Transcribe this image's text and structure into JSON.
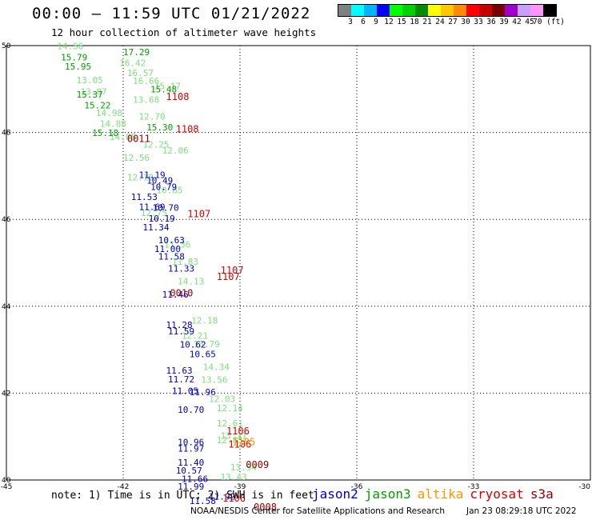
{
  "title": "00:00 – 11:59 UTC 01/21/2022",
  "subtitle": "12 hour collection of altimeter wave heights",
  "legend": {
    "colors": [
      "#808080",
      "#00ffff",
      "#00b4ff",
      "#0000ff",
      "#00ff00",
      "#00d200",
      "#008c00",
      "#ffff00",
      "#ffc800",
      "#ff8c00",
      "#ff0000",
      "#c80000",
      "#780000",
      "#a000c8",
      "#c8a0ff",
      "#ff96ff",
      "#000000"
    ],
    "labels": [
      "3",
      "6",
      "9",
      "12",
      "15",
      "18",
      "21",
      "24",
      "27",
      "30",
      "33",
      "36",
      "39",
      "42",
      "45",
      "70 (ft)"
    ]
  },
  "note": "note: 1) Time is in UTC; 2) SWH is in feet",
  "satellites": [
    {
      "name": "jason2",
      "color": "#0000c8"
    },
    {
      "name": "jason3",
      "color": "#00a000"
    },
    {
      "name": "altika",
      "color": "#ff9600"
    },
    {
      "name": "cryosat",
      "color": "#dc0000"
    },
    {
      "name": "s3a",
      "color": "#960000"
    }
  ],
  "credit": "NOAA/NESDIS Center for Satellite Applications and Research",
  "timestamp": "Jan 23 08:29:18 UTC 2022",
  "chart_data": {
    "type": "scatter",
    "xlim": [
      -45,
      -30
    ],
    "ylim": [
      40,
      50
    ],
    "x_ticks": [
      "-45",
      "-42",
      "-39",
      "-36",
      "-33",
      "-30"
    ],
    "y_ticks": [
      "40",
      "42",
      "44",
      "46",
      "48",
      "50"
    ],
    "grid": true,
    "series": [
      {
        "name": "jason3",
        "color": "#7ee07e",
        "points": [
          [
            -43.7,
            49.92,
            "14.56"
          ],
          [
            -43.2,
            49.13,
            "13.05"
          ],
          [
            -43.1,
            48.87,
            "13.87"
          ],
          [
            -42.7,
            48.38,
            "14.98"
          ],
          [
            -42.6,
            48.13,
            "14.88"
          ],
          [
            -42.35,
            47.83,
            "14.05"
          ],
          [
            -42.0,
            47.35,
            "12.56"
          ],
          [
            -41.9,
            46.9,
            "12.10"
          ],
          [
            -41.55,
            46.08,
            "12.75"
          ],
          [
            -40.95,
            45.35,
            "11.36"
          ],
          [
            -40.75,
            44.95,
            "11.83"
          ],
          [
            -40.6,
            44.5,
            "14.13"
          ],
          [
            -40.25,
            43.6,
            "12.18"
          ],
          [
            -40.5,
            43.25,
            "12.21"
          ],
          [
            -40.2,
            43.06,
            "13.79"
          ],
          [
            -39.95,
            42.53,
            "14.34"
          ],
          [
            -40.0,
            42.24,
            "13.56"
          ],
          [
            -39.8,
            41.8,
            "12.03"
          ],
          [
            -39.6,
            41.58,
            "12.14"
          ],
          [
            -39.6,
            41.23,
            "12.61"
          ],
          [
            -39.5,
            40.95,
            "13.31"
          ],
          [
            -39.25,
            40.22,
            "13.54"
          ],
          [
            -42.1,
            49.53,
            "16.42"
          ],
          [
            -41.9,
            49.3,
            "16.57"
          ],
          [
            -41.75,
            49.12,
            "16.66"
          ],
          [
            -41.2,
            49.0,
            "15.17"
          ],
          [
            -41.75,
            48.68,
            "13.68"
          ],
          [
            -41.6,
            48.3,
            "12.70"
          ],
          [
            -41.5,
            47.65,
            "12.25"
          ],
          [
            -41.0,
            47.51,
            "12.06"
          ],
          [
            -41.15,
            46.6,
            "10.85"
          ],
          [
            -39.6,
            40.85,
            "12.85"
          ],
          [
            -39.5,
            40.0,
            "13.43"
          ]
        ]
      },
      {
        "name": "jason3-dark",
        "color": "#00a000",
        "points": [
          [
            -43.6,
            49.66,
            "15.79"
          ],
          [
            -43.5,
            49.45,
            "15.95"
          ],
          [
            -43.2,
            48.8,
            "15.37"
          ],
          [
            -43.0,
            48.55,
            "15.22"
          ],
          [
            -42.8,
            47.92,
            "15.18"
          ],
          [
            -42.0,
            49.78,
            "17.29"
          ],
          [
            -41.3,
            48.92,
            "15.48"
          ],
          [
            -41.4,
            48.05,
            "15.30"
          ]
        ]
      },
      {
        "name": "jason2",
        "color": "#0000c8",
        "points": [
          [
            -41.6,
            46.95,
            "11.19"
          ],
          [
            -41.4,
            46.82,
            "10.49"
          ],
          [
            -41.3,
            46.68,
            "10.79"
          ],
          [
            -41.8,
            46.45,
            "11.53"
          ],
          [
            -41.6,
            46.22,
            "11.69"
          ],
          [
            -41.25,
            46.2,
            "10.70"
          ],
          [
            -41.35,
            45.95,
            "10.19"
          ],
          [
            -41.5,
            45.75,
            "11.34"
          ],
          [
            -41.1,
            45.45,
            "10.63"
          ],
          [
            -41.2,
            45.25,
            "11.00"
          ],
          [
            -41.1,
            45.07,
            "11.58"
          ],
          [
            -40.85,
            44.8,
            "11.33"
          ],
          [
            -41.0,
            44.2,
            "11.46"
          ],
          [
            -40.9,
            43.5,
            "11.28"
          ],
          [
            -40.85,
            43.35,
            "11.59"
          ],
          [
            -40.55,
            43.05,
            "10.62"
          ],
          [
            -40.3,
            42.83,
            "10.65"
          ],
          [
            -40.9,
            42.45,
            "11.63"
          ],
          [
            -40.85,
            42.25,
            "11.72"
          ],
          [
            -40.75,
            41.98,
            "11.05"
          ],
          [
            -40.3,
            41.95,
            "11.96"
          ],
          [
            -40.6,
            41.55,
            "10.70"
          ],
          [
            -40.6,
            40.8,
            "10.96"
          ],
          [
            -40.6,
            40.65,
            "11.97"
          ],
          [
            -40.6,
            40.33,
            "11.40"
          ],
          [
            -40.65,
            40.15,
            "10.57"
          ],
          [
            -40.5,
            39.95,
            "11.66"
          ],
          [
            -40.6,
            39.78,
            "11.99"
          ],
          [
            -40.3,
            39.45,
            "11.58"
          ],
          [
            -39.8,
            39.55,
            "11.92"
          ]
        ]
      },
      {
        "name": "cryosat",
        "color": "#dc0000",
        "points": [
          [
            -40.9,
            48.75,
            "1108"
          ],
          [
            -40.65,
            48.0,
            "1108"
          ],
          [
            -40.35,
            46.05,
            "1107"
          ],
          [
            -39.5,
            44.75,
            "1107"
          ],
          [
            -39.6,
            44.6,
            "1107"
          ],
          [
            -39.35,
            41.05,
            "1106"
          ],
          [
            -39.3,
            40.75,
            "1106"
          ],
          [
            -39.45,
            39.5,
            "1106"
          ]
        ]
      },
      {
        "name": "s3a",
        "color": "#960000",
        "points": [
          [
            -41.9,
            47.78,
            "0011"
          ],
          [
            -40.8,
            44.23,
            "0010"
          ],
          [
            -38.85,
            40.28,
            "0009"
          ],
          [
            -38.65,
            39.3,
            "0008"
          ]
        ]
      },
      {
        "name": "altika",
        "color": "#ff9600",
        "points": [
          [
            -39.2,
            40.8,
            "1105"
          ]
        ]
      }
    ]
  }
}
